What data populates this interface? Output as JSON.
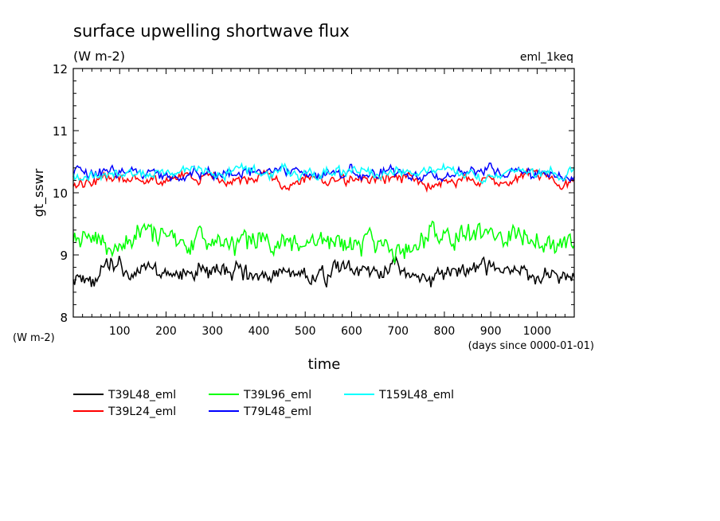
{
  "chart_data": {
    "type": "line",
    "title": "surface upwelling shortwave flux",
    "subtitle": "(W m-2)",
    "annotation": "eml_1keq",
    "xlabel": "time",
    "xunits": "(days since 0000-01-01)",
    "ylabel": "gt_sswr",
    "yunits": "(W m-2)",
    "xlim": [
      0,
      1080
    ],
    "ylim": [
      8,
      12
    ],
    "xticks": [
      100,
      200,
      300,
      400,
      500,
      600,
      700,
      800,
      900,
      1000
    ],
    "yticks": [
      8,
      9,
      10,
      11,
      12
    ],
    "legend_position": "bottom",
    "grid": false,
    "series": [
      {
        "name": "T39L48_eml",
        "color": "#000000",
        "mean": 8.7,
        "amplitude": 0.2,
        "seed": 11
      },
      {
        "name": "T39L24_eml",
        "color": "#ff0000",
        "mean": 10.2,
        "amplitude": 0.12,
        "seed": 23
      },
      {
        "name": "T39L96_eml",
        "color": "#00ff00",
        "mean": 9.25,
        "amplitude": 0.25,
        "seed": 37
      },
      {
        "name": "T79L48_eml",
        "color": "#0000ff",
        "mean": 10.32,
        "amplitude": 0.12,
        "seed": 41
      },
      {
        "name": "T159L48_eml",
        "color": "#00ffff",
        "mean": 10.33,
        "amplitude": 0.12,
        "seed": 53
      }
    ]
  }
}
